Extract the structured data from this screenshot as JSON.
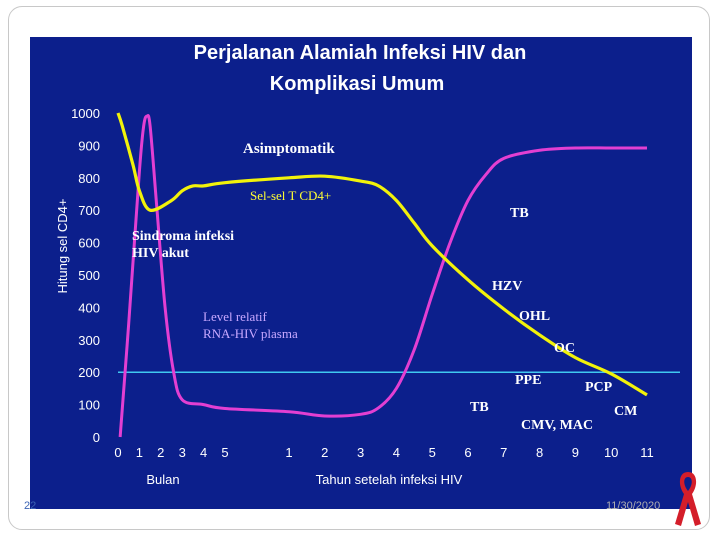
{
  "slide": {
    "number": "22",
    "date": "11/30/2020"
  },
  "colors": {
    "background": "#0c1f8c",
    "cd4_line": "#f2f20a",
    "rna_line": "#e33fd2",
    "threshold_line": "#40c8f0",
    "text_white": "#ffffff",
    "text_yellow": "#ffff33",
    "text_lavender": "#c8a8ff"
  },
  "chart_data": {
    "type": "line",
    "title_line1": "Perjalanan Alamiah Infeksi HIV dan",
    "title_line2": "Komplikasi Umum",
    "ylabel": "Hitung sel CD4+",
    "ylim": [
      0,
      1000
    ],
    "y_ticks": [
      "0",
      "100",
      "200",
      "300",
      "400",
      "500",
      "600",
      "700",
      "800",
      "900",
      "1000"
    ],
    "x_ticks_months": [
      "0",
      "1",
      "2",
      "3",
      "4",
      "5"
    ],
    "x_ticks_years": [
      "1",
      "2",
      "3",
      "4",
      "5",
      "6",
      "7",
      "8",
      "9",
      "10",
      "11"
    ],
    "xlabel_months": "Bulan",
    "xlabel_years": "Tahun setelah infeksi HIV",
    "threshold": 200,
    "series": [
      {
        "name": "Sel-sel T CD4+",
        "x": [
          "0",
          "0.2",
          "0.7",
          "1",
          "1.5",
          "2.5",
          "3",
          "3.5",
          "4",
          "5",
          "1",
          "2",
          "3",
          "3.5",
          "4",
          "4.5",
          "5",
          "6",
          "7",
          "8",
          "9",
          "10",
          "11"
        ],
        "phase": [
          "m",
          "m",
          "m",
          "m",
          "m",
          "m",
          "m",
          "m",
          "m",
          "m",
          "y",
          "y",
          "y",
          "y",
          "y",
          "y",
          "y",
          "y",
          "y",
          "y",
          "y",
          "y",
          "y"
        ],
        "values": [
          1000,
          960,
          840,
          760,
          700,
          730,
          760,
          775,
          775,
          785,
          800,
          805,
          790,
          775,
          730,
          660,
          590,
          485,
          395,
          315,
          245,
          195,
          130
        ]
      },
      {
        "name": "Level relatif RNA-HIV plasma",
        "x": [
          "0.1",
          "0.5",
          "1",
          "1.2",
          "1.35",
          "1.5",
          "1.8",
          "2.2",
          "2.6",
          "3",
          "4",
          "5",
          "1",
          "2",
          "3",
          "3.5",
          "4",
          "4.5",
          "5",
          "5.5",
          "6",
          "6.5",
          "7",
          "8",
          "9",
          "10",
          "11"
        ],
        "phase": [
          "m",
          "m",
          "m",
          "m",
          "m",
          "m",
          "m",
          "m",
          "m",
          "m",
          "m",
          "m",
          "y",
          "y",
          "y",
          "y",
          "y",
          "y",
          "y",
          "y",
          "y",
          "y",
          "y",
          "y",
          "y",
          "y",
          "y"
        ],
        "values": [
          0,
          350,
          820,
          960,
          990,
          960,
          720,
          400,
          200,
          115,
          100,
          88,
          78,
          65,
          70,
          90,
          150,
          270,
          440,
          600,
          730,
          810,
          860,
          885,
          892,
          892,
          892
        ]
      }
    ],
    "annotations": [
      {
        "text": "Asimptomatik",
        "color": "white"
      },
      {
        "text": "Sel-sel T CD4+",
        "color": "yellow"
      },
      {
        "text": "Sindroma infeksi",
        "color": "white"
      },
      {
        "text": "HIV akut",
        "color": "white"
      },
      {
        "text": "Level relatif",
        "color": "lavender"
      },
      {
        "text": "RNA-HIV plasma",
        "color": "lavender"
      },
      {
        "text": "TB",
        "color": "white"
      },
      {
        "text": "HZV",
        "color": "white"
      },
      {
        "text": "OHL",
        "color": "white"
      },
      {
        "text": "OC",
        "color": "white"
      },
      {
        "text": "PPE",
        "color": "white"
      },
      {
        "text": "TB",
        "color": "white"
      },
      {
        "text": "PCP",
        "color": "white"
      },
      {
        "text": "CM",
        "color": "white"
      },
      {
        "text": "CMV, MAC",
        "color": "white"
      }
    ]
  }
}
